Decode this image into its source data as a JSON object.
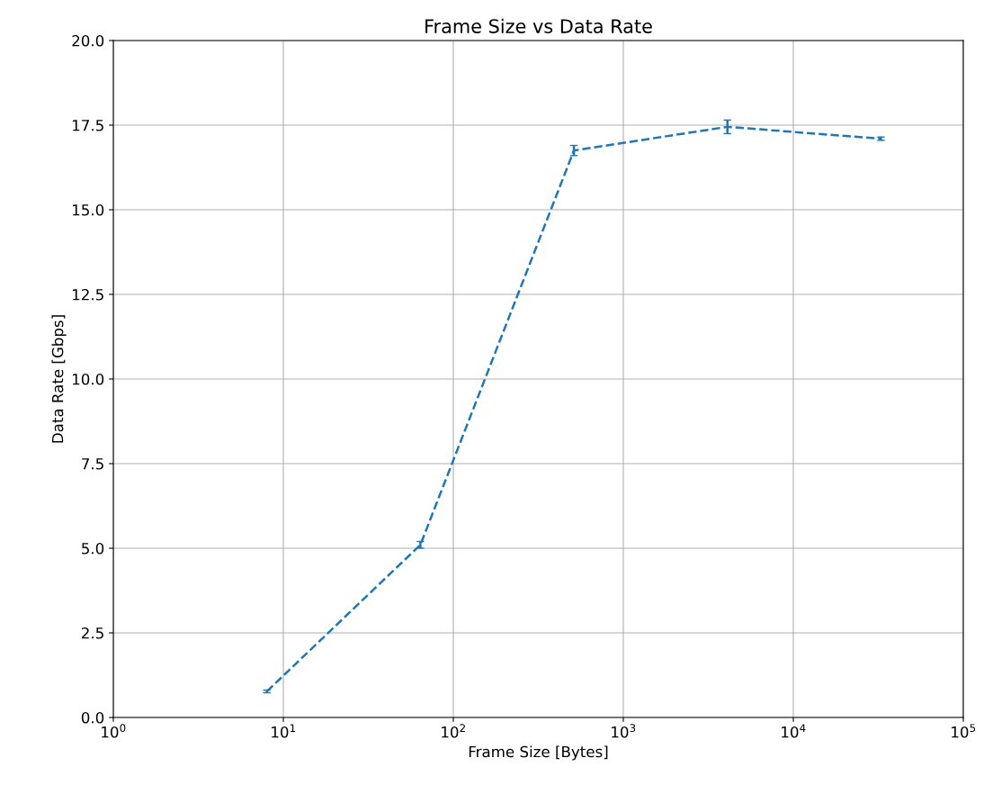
{
  "chart_data": {
    "type": "line",
    "title": "Frame Size vs Data Rate",
    "xlabel": "Frame Size [Bytes]",
    "ylabel": "Data Rate [Gbps]",
    "x": [
      8,
      64,
      512,
      4096,
      32768
    ],
    "series": [
      {
        "color": "#1f77b4",
        "values": [
          0.77,
          5.1,
          16.75,
          17.45,
          17.1
        ],
        "errors": [
          0.04,
          0.1,
          0.15,
          0.2,
          0.05
        ]
      }
    ],
    "log": "x",
    "xlim": [
      1,
      100000
    ],
    "xticks": [
      {
        "value": 1,
        "label": "10$^{0}$"
      },
      {
        "value": 10,
        "label": "10$^{1}$"
      },
      {
        "value": 100,
        "label": "10$^{2}$"
      },
      {
        "value": 1000,
        "label": "10$^{3}$"
      },
      {
        "value": 10000,
        "label": "10$^{4}$"
      },
      {
        "value": 100000,
        "label": "10$^{5}$"
      }
    ],
    "ylim": [
      0,
      20
    ],
    "yticks": [
      {
        "value": 0,
        "label": "0.0"
      },
      {
        "value": 2.5,
        "label": "2.5"
      },
      {
        "value": 5,
        "label": "5.0"
      },
      {
        "value": 7.5,
        "label": "7.5"
      },
      {
        "value": 10,
        "label": "10.0"
      },
      {
        "value": 12.5,
        "label": "12.5"
      },
      {
        "value": 15,
        "label": "15.0"
      },
      {
        "value": 17.5,
        "label": "17.5"
      },
      {
        "value": 20,
        "label": "20.0"
      }
    ],
    "grid": true,
    "line_style": "dashed",
    "marker": "none"
  }
}
